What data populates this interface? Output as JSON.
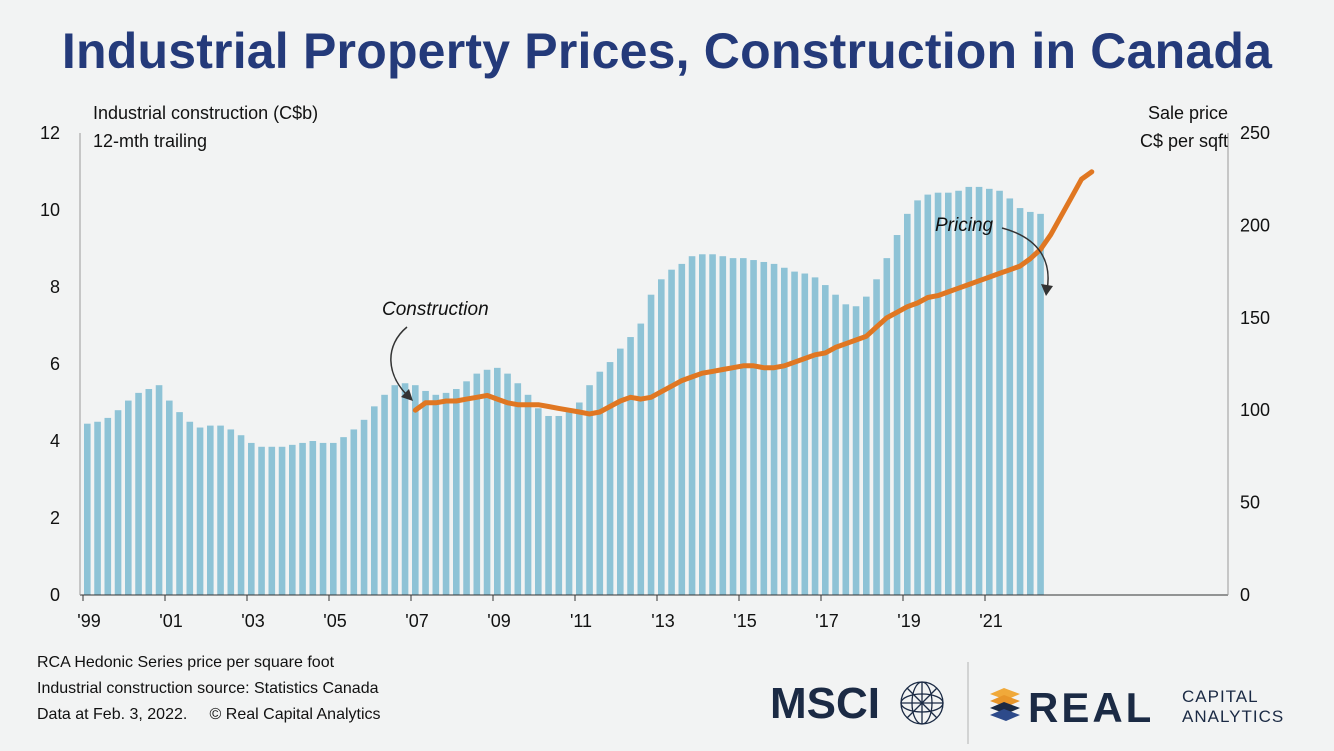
{
  "title": "Industrial Property Prices, Construction in Canada",
  "footer": {
    "line1": "RCA Hedonic Series price per square foot",
    "line2": "Industrial construction source: Statistics Canada",
    "line3": "Data at Feb. 3, 2022.     © Real Capital Analytics"
  },
  "logos": {
    "msci": "MSCI",
    "real": "REAL",
    "capital": "CAPITAL",
    "analytics": "ANALYTICS"
  },
  "colors": {
    "bars": "#8ec3d6",
    "line": "#e07722",
    "title": "#243a7a",
    "logo_dark": "#1b2a44",
    "logo_orange": "#f0a93a"
  },
  "chart_data": {
    "type": "bar+line",
    "left_axis_label_1": "Industrial construction (C$b)",
    "left_axis_label_2": "12-mth trailing",
    "right_axis_label_1": "Sale price",
    "right_axis_label_2": "C$ per sqft",
    "left_ylim": [
      0,
      12
    ],
    "left_ticks": [
      "0",
      "2",
      "4",
      "6",
      "8",
      "10",
      "12"
    ],
    "right_ylim": [
      0,
      250
    ],
    "right_ticks": [
      "0",
      "50",
      "100",
      "150",
      "200",
      "250"
    ],
    "x_ticks": [
      "'99",
      "'01",
      "'03",
      "'05",
      "'07",
      "'09",
      "'11",
      "'13",
      "'15",
      "'17",
      "'19",
      "'21"
    ],
    "annotations": {
      "construction": "Construction",
      "pricing": "Pricing"
    },
    "series": [
      {
        "name": "Construction",
        "type": "bar",
        "axis": "left",
        "frequency": "quarterly from 1999Q1",
        "values": [
          4.45,
          4.5,
          4.6,
          4.8,
          5.05,
          5.25,
          5.35,
          5.45,
          5.05,
          4.75,
          4.5,
          4.35,
          4.4,
          4.4,
          4.3,
          4.15,
          3.95,
          3.85,
          3.85,
          3.85,
          3.9,
          3.95,
          4.0,
          3.95,
          3.95,
          4.1,
          4.3,
          4.55,
          4.9,
          5.2,
          5.45,
          5.5,
          5.45,
          5.3,
          5.2,
          5.25,
          5.35,
          5.55,
          5.75,
          5.85,
          5.9,
          5.75,
          5.5,
          5.2,
          4.85,
          4.65,
          4.65,
          4.8,
          5.0,
          5.45,
          5.8,
          6.05,
          6.4,
          6.7,
          7.05,
          7.8,
          8.2,
          8.45,
          8.6,
          8.8,
          8.85,
          8.85,
          8.8,
          8.75,
          8.75,
          8.7,
          8.65,
          8.6,
          8.5,
          8.4,
          8.35,
          8.25,
          8.05,
          7.8,
          7.55,
          7.5,
          7.75,
          8.2,
          8.75,
          9.35,
          9.9,
          10.25,
          10.4,
          10.45,
          10.45,
          10.5,
          10.6,
          10.6,
          10.55,
          10.5,
          10.3,
          10.05,
          9.95,
          9.9
        ]
      },
      {
        "name": "Pricing",
        "type": "line",
        "axis": "right",
        "frequency": "quarterly from 2007Q1",
        "values": [
          100,
          104,
          104,
          105,
          105,
          106,
          107,
          108,
          106,
          104,
          103,
          103,
          103,
          102,
          101,
          100,
          99,
          98,
          99,
          102,
          105,
          107,
          106,
          107,
          110,
          113,
          116,
          118,
          120,
          121,
          122,
          123,
          124,
          124,
          123,
          123,
          124,
          126,
          128,
          130,
          131,
          134,
          136,
          138,
          140,
          145,
          150,
          153,
          156,
          158,
          161,
          162,
          164,
          166,
          168,
          170,
          172,
          174,
          176,
          178,
          182,
          187,
          195,
          205,
          215,
          225,
          229
        ]
      }
    ]
  }
}
